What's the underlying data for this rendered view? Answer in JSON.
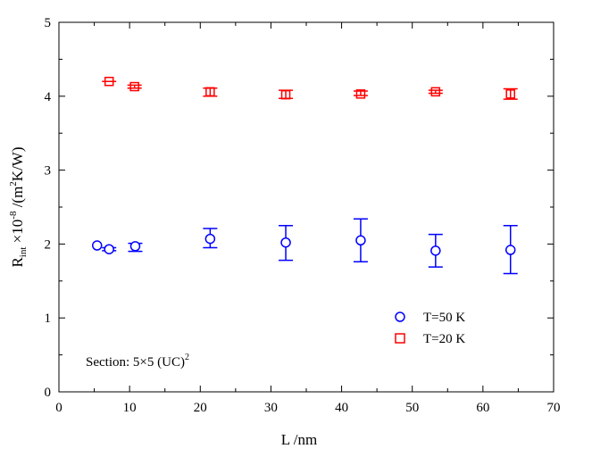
{
  "chart_data": {
    "type": "scatter",
    "title": "",
    "xlabel": "L /nm",
    "ylabel": {
      "main": "R",
      "sub": "int",
      "mid": " ×10",
      "sup": "-8",
      "tail": " /(m",
      "sup2": "2",
      "end": "K/W)"
    },
    "xlim": [
      0,
      70
    ],
    "ylim": [
      0,
      5
    ],
    "xticks": [
      0,
      10,
      20,
      30,
      40,
      50,
      60,
      70
    ],
    "yticks": [
      0,
      1,
      2,
      3,
      4,
      5
    ],
    "grid": false,
    "legend_position": "bottom-right",
    "annotation": {
      "text": "Section: 5×5 (UC)",
      "sup": "2"
    },
    "series": [
      {
        "name": "T=50 K",
        "marker": "circle",
        "color": "#0000ff",
        "x": [
          5.4,
          7.1,
          10.8,
          21.4,
          32.1,
          42.7,
          53.3,
          63.9
        ],
        "y": [
          1.98,
          1.93,
          1.97,
          2.07,
          2.02,
          2.05,
          1.91,
          1.92
        ],
        "err_low": [
          1.98,
          1.91,
          1.9,
          1.95,
          1.78,
          1.76,
          1.69,
          1.6
        ],
        "err_high": [
          1.98,
          1.95,
          2.01,
          2.21,
          2.25,
          2.34,
          2.13,
          2.25
        ]
      },
      {
        "name": "T=20 K",
        "marker": "square",
        "color": "#ff0000",
        "x": [
          7.1,
          10.7,
          21.4,
          32.1,
          42.7,
          53.3,
          63.9
        ],
        "y": [
          4.2,
          4.13,
          4.06,
          4.02,
          4.03,
          4.06,
          4.03
        ],
        "err_low": [
          4.2,
          4.11,
          4.0,
          3.97,
          4.01,
          4.04,
          3.96
        ],
        "err_high": [
          4.2,
          4.15,
          4.11,
          4.08,
          4.07,
          4.08,
          4.1
        ]
      }
    ]
  }
}
